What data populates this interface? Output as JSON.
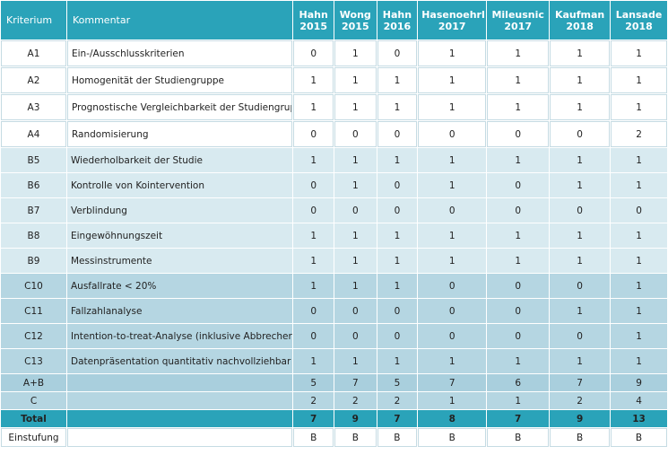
{
  "table": {
    "header": {
      "criterion": "Kriterium",
      "comment": "Kommentar",
      "studies": [
        {
          "name": "Hahn",
          "year": "2015"
        },
        {
          "name": "Wong",
          "year": "2015"
        },
        {
          "name": "Hahn",
          "year": "2016"
        },
        {
          "name": "Hasenoehrl",
          "year": "2017"
        },
        {
          "name": "Mileusnic",
          "year": "2017"
        },
        {
          "name": "Kaufman",
          "year": "2018"
        },
        {
          "name": "Lansade",
          "year": "2018"
        }
      ]
    },
    "rows": [
      {
        "label": "A1",
        "comment": "Ein-/Ausschlusskriterien",
        "values": [
          0,
          1,
          0,
          1,
          1,
          1,
          1
        ]
      },
      {
        "label": "A2",
        "comment": "Homogenität der Studiengruppe",
        "values": [
          1,
          1,
          1,
          1,
          1,
          1,
          1
        ]
      },
      {
        "label": "A3",
        "comment": "Prognostische Vergleichbarkeit der Studiengruppe",
        "values": [
          1,
          1,
          1,
          1,
          1,
          1,
          1
        ]
      },
      {
        "label": "A4",
        "comment": "Randomisierung",
        "values": [
          0,
          0,
          0,
          0,
          0,
          0,
          2
        ]
      },
      {
        "label": "B5",
        "comment": "Wiederholbarkeit der Studie",
        "values": [
          1,
          1,
          1,
          1,
          1,
          1,
          1
        ]
      },
      {
        "label": "B6",
        "comment": "Kontrolle von Kointervention",
        "values": [
          0,
          1,
          0,
          1,
          0,
          1,
          1
        ]
      },
      {
        "label": "B7",
        "comment": "Verblindung",
        "values": [
          0,
          0,
          0,
          0,
          0,
          0,
          0
        ]
      },
      {
        "label": "B8",
        "comment": "Eingewöhnungszeit",
        "values": [
          1,
          1,
          1,
          1,
          1,
          1,
          1
        ]
      },
      {
        "label": "B9",
        "comment": "Messinstrumente",
        "values": [
          1,
          1,
          1,
          1,
          1,
          1,
          1
        ]
      },
      {
        "label": "C10",
        "comment": "Ausfallrate < 20%",
        "values": [
          1,
          1,
          1,
          0,
          0,
          0,
          1
        ]
      },
      {
        "label": "C11",
        "comment": "Fallzahlanalyse",
        "values": [
          0,
          0,
          0,
          0,
          0,
          1,
          1
        ]
      },
      {
        "label": "C12",
        "comment": "Intention-to-treat-Analyse (inklusive Abbrecher)",
        "values": [
          0,
          0,
          0,
          0,
          0,
          0,
          1
        ]
      },
      {
        "label": "C13",
        "comment": "Datenpräsentation quantitativ nachvollziehbar",
        "values": [
          1,
          1,
          1,
          1,
          1,
          1,
          1
        ]
      }
    ],
    "summary": [
      {
        "label": "A+B",
        "values": [
          5,
          7,
          5,
          7,
          6,
          7,
          9
        ]
      },
      {
        "label": "C",
        "values": [
          2,
          2,
          2,
          1,
          1,
          2,
          4
        ]
      },
      {
        "label": "Total",
        "values": [
          7,
          9,
          7,
          8,
          7,
          9,
          13
        ]
      },
      {
        "label": "Einstufung",
        "values": [
          "B",
          "B",
          "B",
          "B",
          "B",
          "B",
          "B"
        ]
      }
    ]
  }
}
